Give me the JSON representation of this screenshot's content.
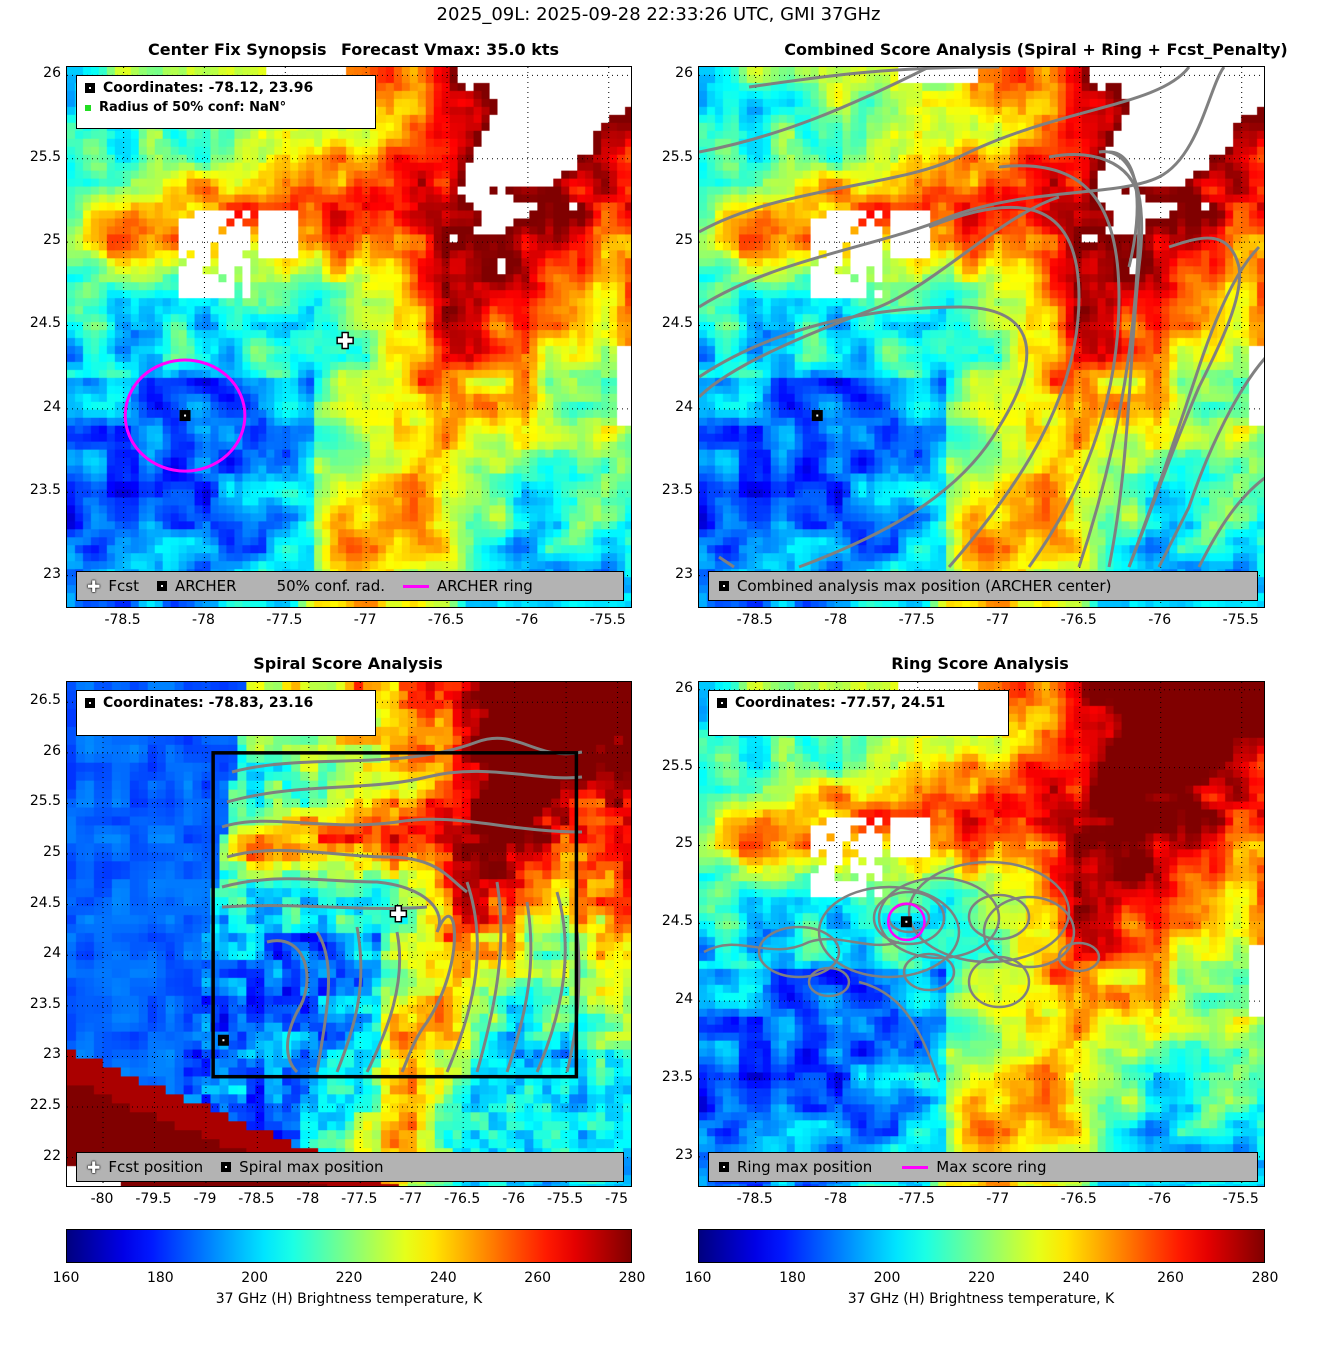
{
  "figure": {
    "suptitle": "2025_09L: 2025-09-28 22:33:26 UTC, GMI 37GHz"
  },
  "panels": {
    "synopsis": {
      "title_left": "Center Fix Synopsis",
      "title_right": "Forecast Vmax: 35.0 kts",
      "legend_top": [
        "Coordinates: -78.12, 23.96",
        "Radius of 50% conf: NaN°"
      ],
      "legend_bottom": [
        "Fcst",
        "ARCHER",
        "50% conf. rad.",
        "ARCHER ring"
      ],
      "xticks": [
        "-78.5",
        "-78",
        "-77.5",
        "-77",
        "-76.5",
        "-76",
        "-75.5"
      ],
      "yticks": [
        "26",
        "25.5",
        "25",
        "24.5",
        "24",
        "23.5",
        "23"
      ]
    },
    "combined": {
      "title": "Combined Score Analysis (Spiral + Ring + Fcst_Penalty)",
      "legend_bottom": [
        "Combined analysis max position (ARCHER center)"
      ],
      "xticks": [
        "-78.5",
        "-78",
        "-77.5",
        "-77",
        "-76.5",
        "-76",
        "-75.5"
      ],
      "yticks": [
        "26",
        "25.5",
        "25",
        "24.5",
        "24",
        "23.5",
        "23"
      ]
    },
    "spiral": {
      "title": "Spiral Score Analysis",
      "legend_top": [
        "Coordinates: -78.83, 23.16"
      ],
      "legend_bottom": [
        "Fcst position",
        "Spiral max position"
      ],
      "xticks": [
        "-80",
        "-79.5",
        "-79",
        "-78.5",
        "-78",
        "-77.5",
        "-77",
        "-76.5",
        "-76",
        "-75.5",
        "-75"
      ],
      "yticks": [
        "26.5",
        "26",
        "25.5",
        "25",
        "24.5",
        "24",
        "23.5",
        "23",
        "22.5",
        "22"
      ]
    },
    "ring": {
      "title": "Ring Score Analysis",
      "legend_top": [
        "Coordinates: -77.57, 24.51"
      ],
      "legend_bottom": [
        "Ring max position",
        "Max score ring"
      ],
      "xticks": [
        "-78.5",
        "-78",
        "-77.5",
        "-77",
        "-76.5",
        "-76",
        "-75.5"
      ],
      "yticks": [
        "26",
        "25.5",
        "25",
        "24.5",
        "24",
        "23.5",
        "23"
      ]
    }
  },
  "colorbars": {
    "label": "37 GHz (H) Brightness temperature, K",
    "ticks": [
      "160",
      "180",
      "200",
      "220",
      "240",
      "260",
      "280"
    ]
  },
  "colors": {
    "archer_ring": "#ff00ff",
    "contour": "#808080",
    "legend_bg": "#b3b3b3"
  },
  "chart_data": [
    {
      "type": "heatmap",
      "title": "Center Fix Synopsis",
      "colormap": "jet",
      "clim": [
        160,
        280
      ],
      "xlim": [
        -78.85,
        -75.35
      ],
      "ylim": [
        22.8,
        26.05
      ],
      "points": [
        {
          "label": "Fcst",
          "x": -77.13,
          "y": 24.41
        },
        {
          "label": "ARCHER",
          "x": -78.12,
          "y": 23.96
        }
      ],
      "archer_ring": {
        "center": [
          -78.12,
          23.96
        ],
        "radius_deg": 0.37
      }
    },
    {
      "type": "heatmap",
      "title": "Combined Score Analysis (Spiral + Ring + Fcst_Penalty)",
      "colormap": "jet",
      "clim": [
        160,
        280
      ],
      "xlim": [
        -78.85,
        -75.35
      ],
      "ylim": [
        22.8,
        26.05
      ],
      "points": [
        {
          "label": "Combined analysis max position (ARCHER center)",
          "x": -78.12,
          "y": 23.96
        }
      ]
    },
    {
      "type": "heatmap",
      "title": "Spiral Score Analysis",
      "colormap": "jet",
      "clim": [
        160,
        280
      ],
      "xlim": [
        -80.35,
        -74.85
      ],
      "ylim": [
        21.7,
        26.7
      ],
      "points": [
        {
          "label": "Fcst position",
          "x": -77.13,
          "y": 24.41
        },
        {
          "label": "Spiral max position",
          "x": -78.83,
          "y": 23.16
        }
      ],
      "search_box": {
        "x": [
          -78.93,
          -75.4
        ],
        "y": [
          22.8,
          26.0
        ]
      }
    },
    {
      "type": "heatmap",
      "title": "Ring Score Analysis",
      "colormap": "jet",
      "clim": [
        160,
        280
      ],
      "xlim": [
        -78.85,
        -75.35
      ],
      "ylim": [
        22.8,
        26.05
      ],
      "points": [
        {
          "label": "Ring max position",
          "x": -77.57,
          "y": 24.51
        }
      ],
      "max_score_ring": {
        "center": [
          -77.57,
          24.51
        ],
        "radius_deg": 0.07
      }
    }
  ]
}
